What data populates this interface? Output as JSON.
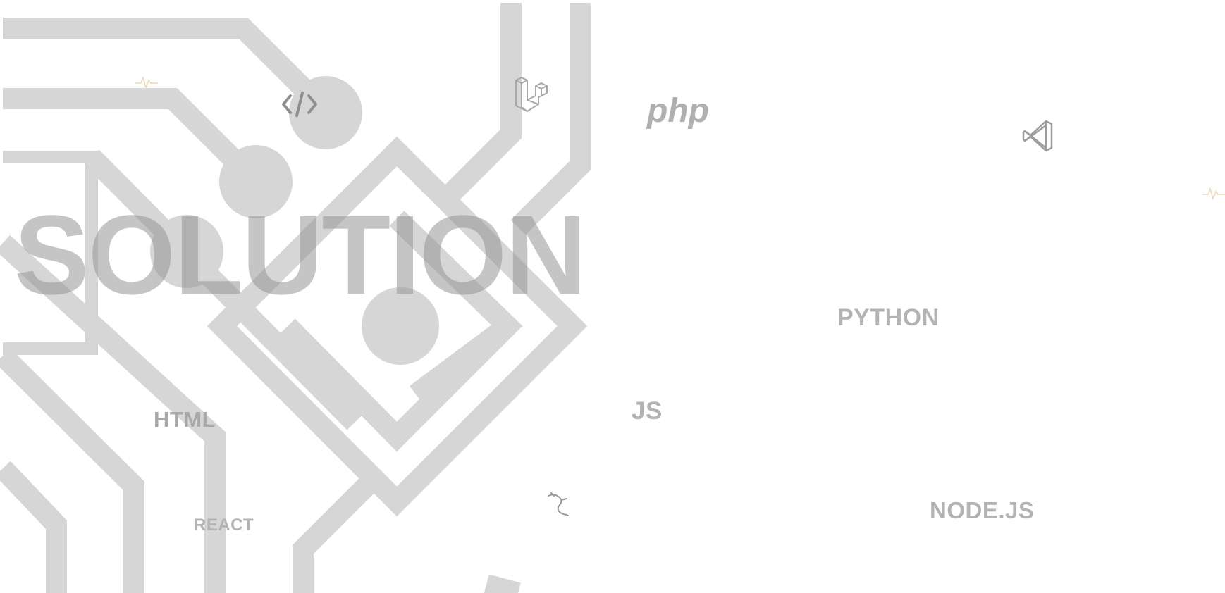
{
  "headline": "SOLUTION",
  "tags": {
    "php": "php",
    "python": "PYTHON",
    "html": "HTML",
    "js": "JS",
    "react": "REACT",
    "nodejs": "NODE.JS"
  },
  "icons": {
    "code": "code-brackets-icon",
    "laravel": "laravel-logo-icon",
    "vscode": "vscode-logo-icon",
    "kali": "kali-dragon-icon",
    "pulse": "heartbeat-pulse-icon"
  },
  "colors": {
    "background": "#ffffff",
    "circuit": "#d6d6d6",
    "text": "#b3b3b3",
    "accent_pulse": "#f2d9b3"
  }
}
